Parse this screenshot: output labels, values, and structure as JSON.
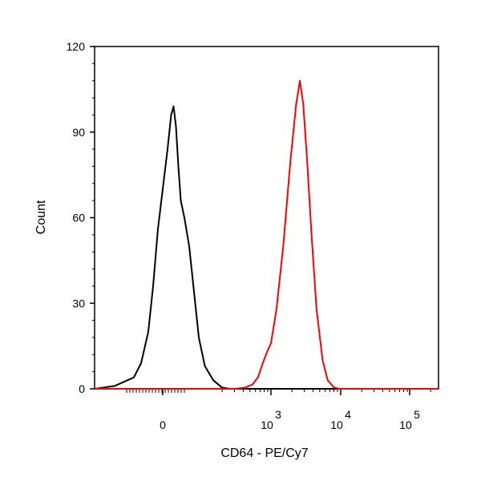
{
  "chart_data": {
    "type": "line",
    "title": "",
    "xlabel": "CD64 - PE/Cy7",
    "ylabel": "Count",
    "x_scale": "biexponential (logicle)",
    "ylim": [
      0,
      120
    ],
    "y_ticks": [
      "0",
      "30",
      "60",
      "90",
      "120"
    ],
    "x_ticks": [
      {
        "label": "0"
      },
      {
        "base": "10",
        "exp": "3"
      },
      {
        "base": "10",
        "exp": "4"
      },
      {
        "base": "10",
        "exp": "5"
      }
    ],
    "grid": false,
    "series": [
      {
        "color": "#000000",
        "peak_x": 40,
        "points": [
          [
            -280,
            0
          ],
          [
            -200,
            1
          ],
          [
            -120,
            4
          ],
          [
            -90,
            9
          ],
          [
            -60,
            20
          ],
          [
            -40,
            36
          ],
          [
            -20,
            56
          ],
          [
            0,
            70
          ],
          [
            20,
            84
          ],
          [
            35,
            96
          ],
          [
            45,
            99
          ],
          [
            55,
            92
          ],
          [
            65,
            78
          ],
          [
            75,
            66
          ],
          [
            90,
            60
          ],
          [
            110,
            50
          ],
          [
            130,
            34
          ],
          [
            150,
            18
          ],
          [
            175,
            8
          ],
          [
            210,
            3
          ],
          [
            260,
            0.5
          ],
          [
            320,
            0
          ]
        ]
      },
      {
        "color": "#ff0000",
        "peak_x": 2600,
        "points": [
          [
            380,
            0
          ],
          [
            500,
            0.5
          ],
          [
            600,
            1.5
          ],
          [
            700,
            4
          ],
          [
            800,
            9
          ],
          [
            900,
            13
          ],
          [
            1000,
            16
          ],
          [
            1200,
            28
          ],
          [
            1500,
            50
          ],
          [
            1900,
            80
          ],
          [
            2300,
            100
          ],
          [
            2600,
            108
          ],
          [
            2900,
            100
          ],
          [
            3300,
            80
          ],
          [
            3800,
            55
          ],
          [
            4500,
            28
          ],
          [
            5500,
            10
          ],
          [
            6500,
            3
          ],
          [
            8000,
            0.5
          ],
          [
            9500,
            0
          ]
        ]
      }
    ]
  }
}
